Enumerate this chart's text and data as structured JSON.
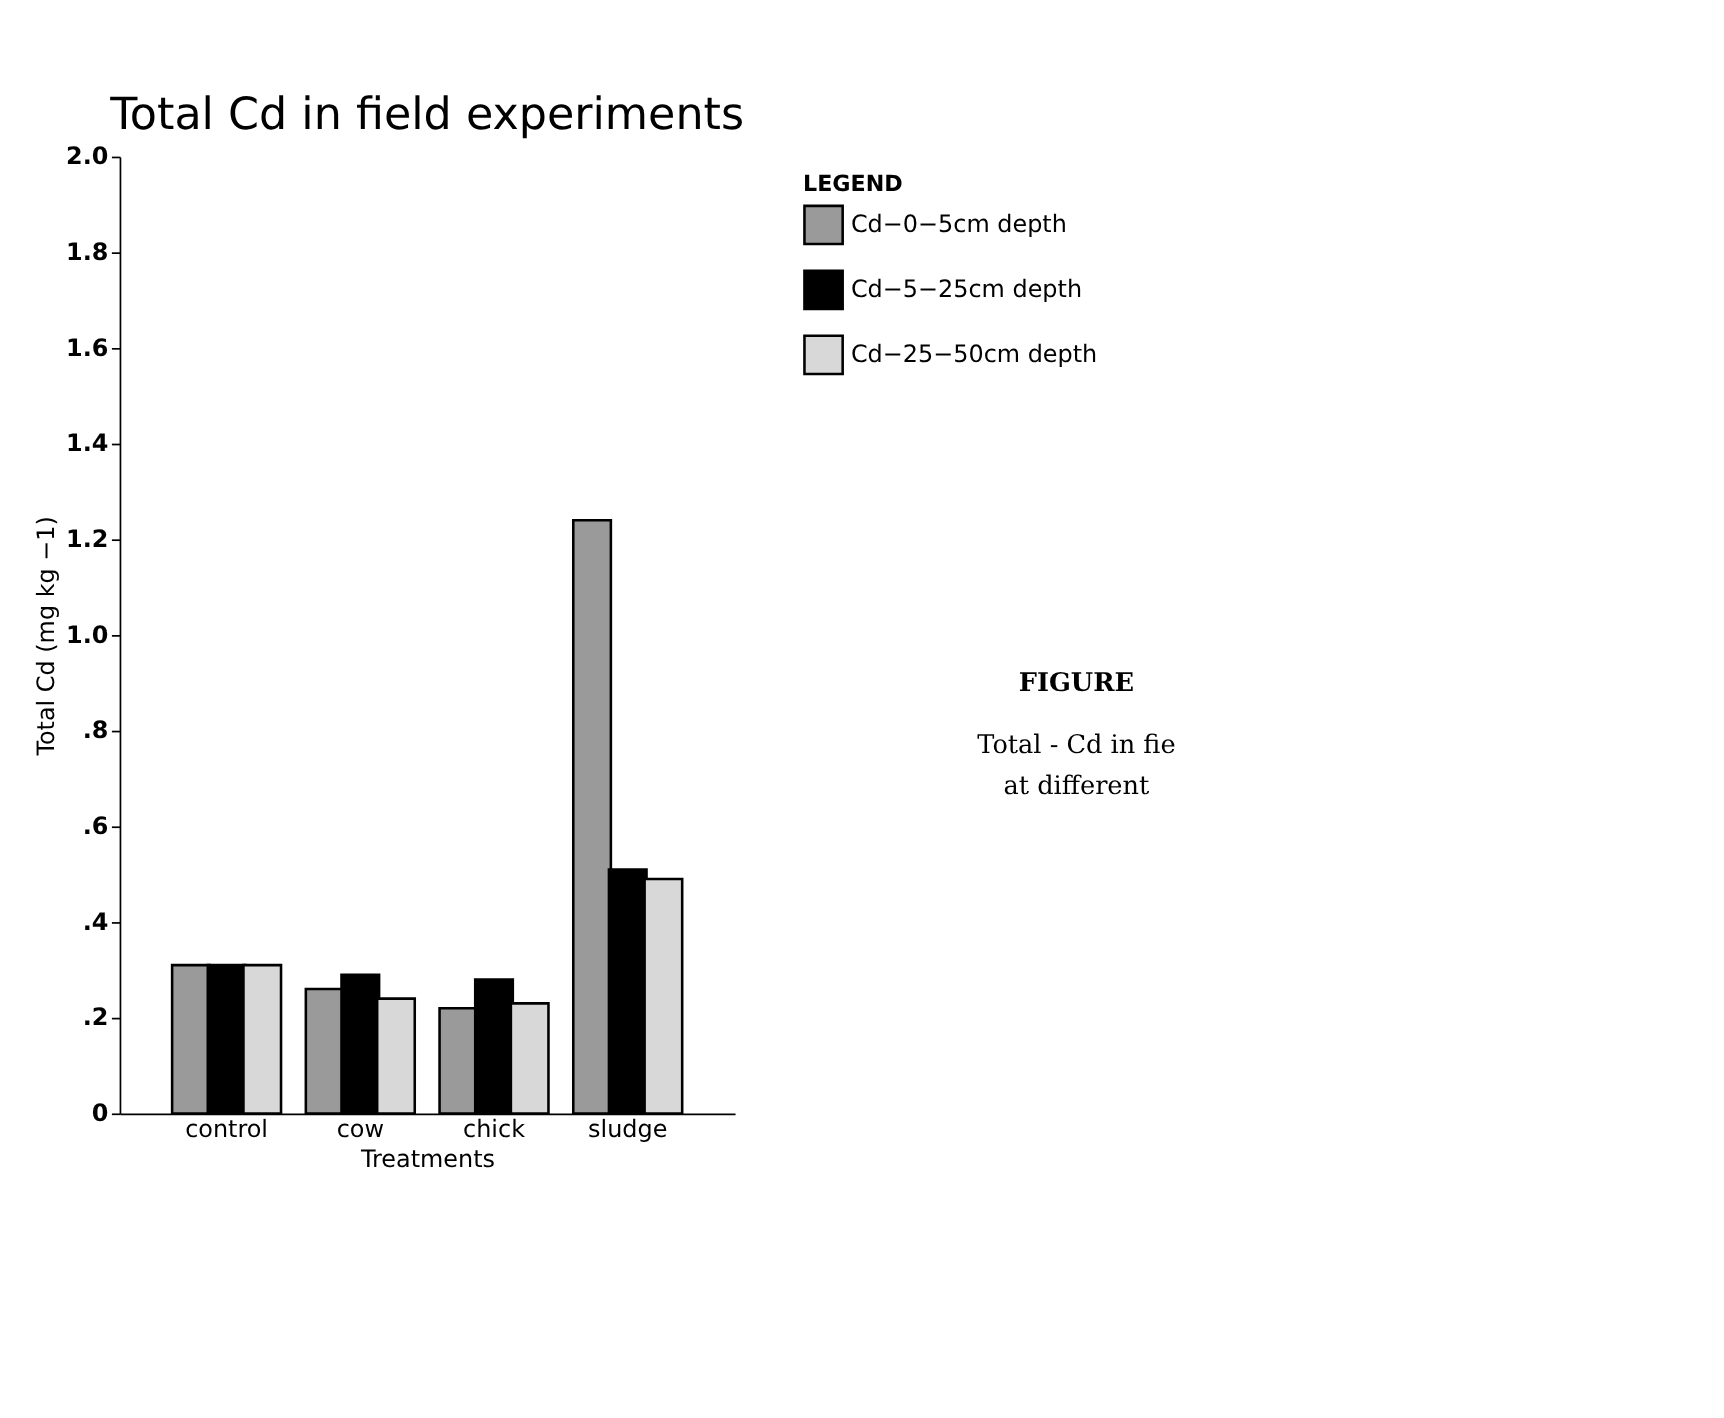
{
  "chart_data": {
    "type": "bar",
    "title": "Total Cd in field experiments",
    "xlabel": "Treatments",
    "ylabel": "Total Cd (mg kg −1)",
    "legend_title": "LEGEND",
    "categories": [
      "control",
      "cow",
      "chick",
      "sludge"
    ],
    "series": [
      {
        "name": "Cd−0−5cm depth",
        "color": "#9a9a9a",
        "values": [
          0.31,
          0.26,
          0.22,
          1.24
        ]
      },
      {
        "name": "Cd−5−25cm depth",
        "color": "#000000",
        "values": [
          0.31,
          0.29,
          0.28,
          0.51
        ]
      },
      {
        "name": "Cd−25−50cm depth",
        "color": "#d8d8d8",
        "values": [
          0.31,
          0.24,
          0.23,
          0.49
        ]
      }
    ],
    "ylim": [
      0,
      2.0
    ],
    "yticks": [
      0,
      {
        "value": 0.2,
        "label": ".2"
      },
      {
        "value": 0.4,
        "label": ".4"
      },
      {
        "value": 0.6,
        "label": ".6"
      },
      {
        "value": 0.8,
        "label": ".8"
      },
      {
        "value": 1.0,
        "label": "1.0"
      },
      {
        "value": 1.2,
        "label": "1.2"
      },
      {
        "value": 1.4,
        "label": "1.4"
      },
      {
        "value": 1.6,
        "label": "1.6"
      },
      {
        "value": 1.8,
        "label": "1.8"
      },
      {
        "value": 2.0,
        "label": "2.0"
      }
    ],
    "grid": false,
    "legend": "top right",
    "annotations": [
      "FIGURE",
      "Total - Cd in fie",
      "at different"
    ]
  }
}
